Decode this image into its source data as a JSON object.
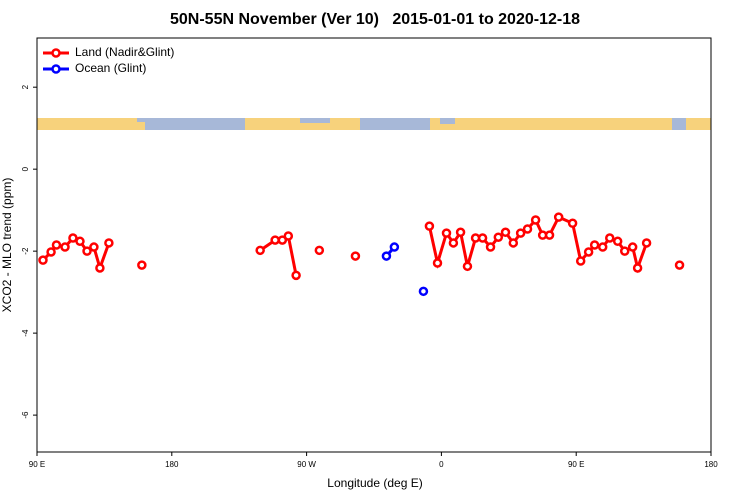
{
  "chart_data": {
    "type": "line",
    "title": "50N-55N November (Ver 10)   2015-01-01 to 2020-12-18",
    "xlabel": "Longitude (deg E)",
    "ylabel": "XCO2 - MLO trend (ppm)",
    "xlim": [
      90,
      540
    ],
    "ylim": [
      -6.9,
      3.2
    ],
    "xticks": [
      {
        "value": 90,
        "label": "90 E"
      },
      {
        "value": 180,
        "label": "180"
      },
      {
        "value": 270,
        "label": "90 W"
      },
      {
        "value": 360,
        "label": "0"
      },
      {
        "value": 450,
        "label": "90 E"
      },
      {
        "value": 540,
        "label": "180"
      }
    ],
    "yticks": [
      -6,
      -4,
      -2,
      0,
      2
    ],
    "legend": "topleft",
    "series": [
      {
        "name": "Land (Nadir&Glint)",
        "color": "#ff0000",
        "x": [
          94,
          99.4,
          103,
          108.7,
          114,
          118.7,
          123.4,
          128,
          132,
          138,
          149,
          160,
          200,
          239,
          249,
          253.8,
          257.8,
          263,
          270,
          278.5,
          290,
          302.6,
          330,
          352,
          357.4,
          363.4,
          368,
          372.8,
          377.4,
          382.8,
          387.5,
          392.8,
          398,
          402.8,
          408,
          412.9,
          417.5,
          422.9,
          427.6,
          432.2,
          438.3,
          447.6,
          453,
          458.3,
          462.3,
          467.7,
          472.4,
          477.7,
          482.4,
          487.7,
          491,
          497,
          508,
          519
        ],
        "values": [
          -2.22,
          -2.02,
          -1.85,
          -1.9,
          -1.68,
          -1.76,
          -2.0,
          -1.9,
          -2.41,
          -1.8,
          null,
          -2.34,
          null,
          -1.98,
          -1.73,
          -1.73,
          -1.63,
          -2.59,
          null,
          -1.98,
          null,
          -2.12,
          null,
          -1.39,
          -2.29,
          -1.56,
          -1.8,
          -1.54,
          -2.37,
          -1.68,
          -1.68,
          -1.9,
          -1.66,
          -1.54,
          -1.8,
          -1.56,
          -1.46,
          -1.24,
          -1.61,
          -1.61,
          -1.17,
          -1.32,
          -2.24,
          -2.02,
          -1.85,
          -1.9,
          -1.68,
          -1.76,
          -2.0,
          -1.9,
          -2.41,
          -1.8,
          null,
          -2.34
        ]
      },
      {
        "name": "Ocean (Glint)",
        "color": "#0000ff",
        "x": [
          323.3,
          328.6,
          338,
          348
        ],
        "values": [
          -2.12,
          -1.9,
          null,
          -2.98
        ]
      }
    ]
  }
}
